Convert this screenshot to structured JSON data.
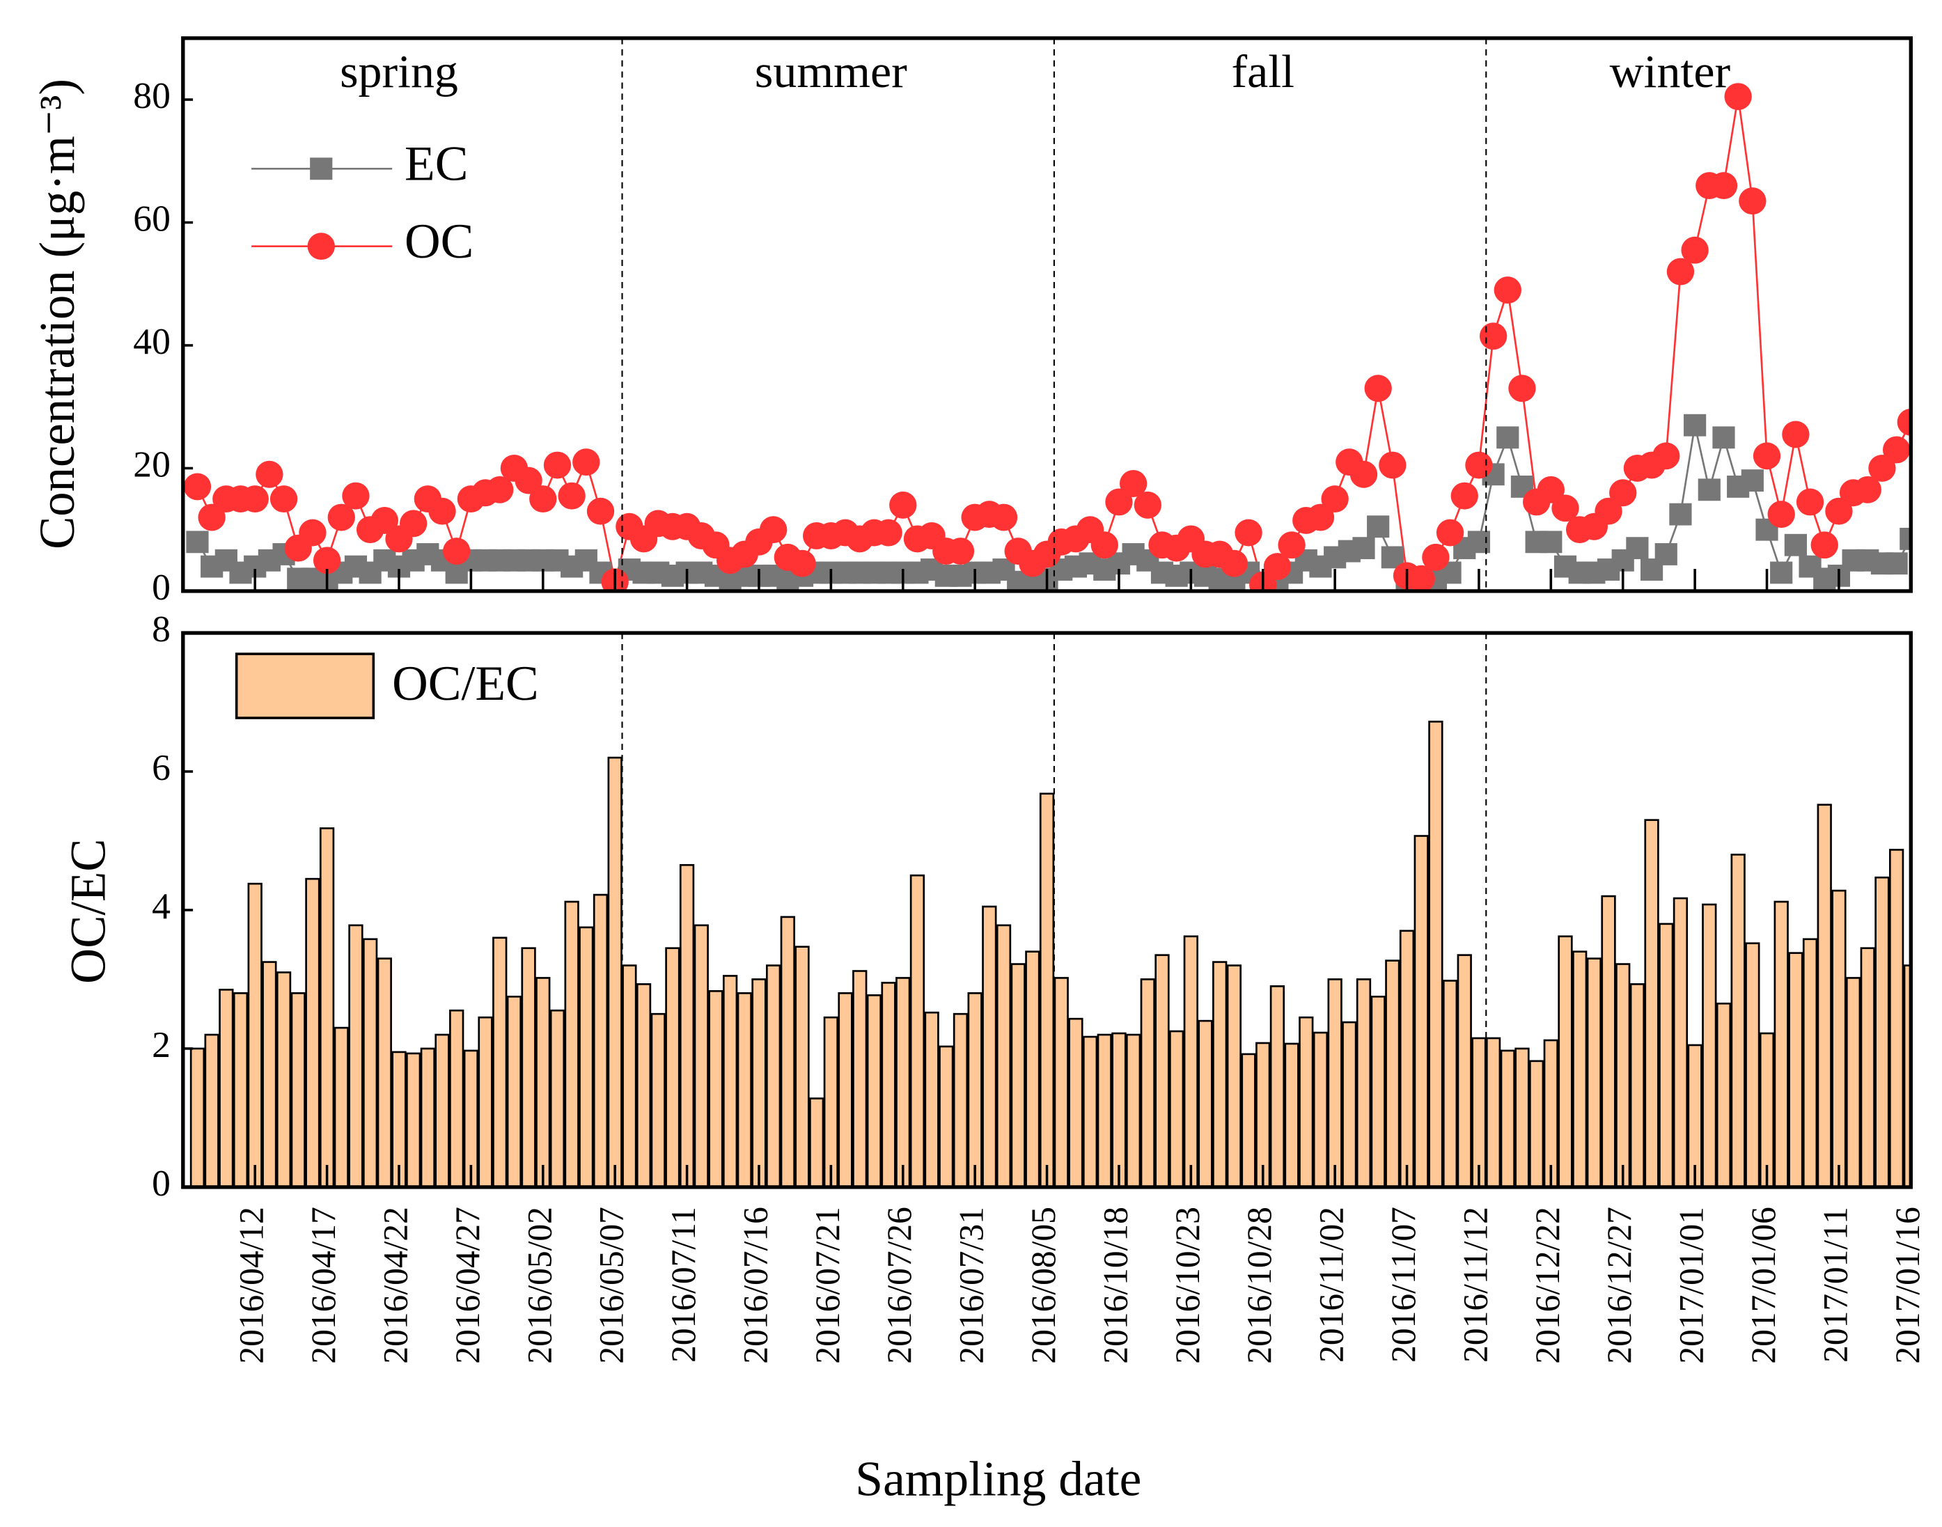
{
  "chart_data": [
    {
      "type": "line",
      "ylabel": "Concentration (μg·m⁻³)",
      "seasons": [
        "spring",
        "summer",
        "fall",
        "winter"
      ],
      "ylim": [
        0,
        90
      ],
      "yticks": [
        0,
        20,
        40,
        60,
        80
      ],
      "series": [
        {
          "name": "EC",
          "color": "#777777",
          "values": [
            8,
            4,
            5,
            3,
            4,
            5,
            6,
            2,
            2,
            2,
            3,
            4,
            3,
            5,
            4,
            5,
            6,
            5,
            3,
            5,
            5,
            5,
            5,
            5,
            5,
            5,
            4,
            5,
            3,
            1,
            3.5,
            3,
            3,
            2.5,
            3,
            3,
            2.5,
            2,
            2.5,
            2.5,
            2.5,
            2,
            2.5,
            3,
            3,
            3,
            3,
            3,
            3,
            3,
            3,
            3.5,
            2.5,
            2.5,
            3,
            3,
            3.5,
            1.5,
            1,
            2,
            3.5,
            4,
            4.5,
            3.5,
            4.5,
            6,
            5,
            3,
            2.5,
            3,
            2.5,
            2,
            2,
            3,
            0.5,
            2,
            3,
            5,
            4,
            5.5,
            6.5,
            7,
            10.5,
            5.5,
            0.5,
            0.5,
            2,
            3,
            7,
            8,
            19,
            25,
            17,
            8,
            8,
            4,
            3,
            3,
            3.5,
            5,
            7,
            3.5,
            6,
            12.5,
            27,
            16.5,
            25,
            17,
            18,
            10,
            3,
            7.5,
            4,
            2,
            2.5,
            5,
            5,
            4.5,
            4.5,
            8.5
          ]
        },
        {
          "name": "OC",
          "color": "#ff3333",
          "values": [
            17,
            12,
            15,
            15,
            15,
            19,
            15,
            7,
            9.5,
            5,
            12,
            15.5,
            10,
            11.5,
            8.5,
            11,
            15,
            13,
            6.5,
            15,
            16,
            16.5,
            20,
            18,
            15,
            20.5,
            15.5,
            21,
            13,
            1.5,
            10.5,
            8.5,
            11,
            10.5,
            10.5,
            9,
            7.5,
            5,
            6,
            8,
            10,
            5.5,
            4.5,
            9,
            9,
            9.5,
            8.5,
            9.5,
            9.5,
            14,
            8.5,
            9,
            6.5,
            6.5,
            12,
            12.5,
            12,
            6.5,
            4.5,
            6,
            8,
            8.5,
            10,
            7.5,
            14.5,
            17.5,
            14,
            7.5,
            7,
            8.5,
            6,
            6,
            4.5,
            9.5,
            1,
            4,
            7.5,
            11.5,
            12,
            15,
            21,
            19,
            33,
            20.5,
            2.5,
            2,
            5.5,
            9.5,
            15.5,
            20.5,
            41.5,
            49,
            33,
            14.5,
            16.5,
            13.5,
            10,
            10.5,
            13,
            16,
            20,
            20.5,
            22,
            52,
            55.5,
            66,
            66,
            80.5,
            63.5,
            22,
            12.5,
            25.5,
            14.5,
            7.5,
            13,
            16,
            16.5,
            20,
            23,
            27.5
          ]
        }
      ]
    },
    {
      "type": "bar",
      "ylabel": "OC/EC",
      "xlabel": "Sampling date",
      "ylim": [
        0,
        8
      ],
      "yticks": [
        0,
        2,
        4,
        6,
        8
      ],
      "categories": [
        null,
        null,
        null,
        null,
        "2016/04/12",
        null,
        null,
        null,
        null,
        "2016/04/17",
        null,
        null,
        null,
        null,
        "2016/04/22",
        null,
        null,
        null,
        null,
        "2016/04/27",
        null,
        null,
        null,
        null,
        "2016/05/02",
        null,
        null,
        null,
        null,
        "2016/05/07",
        null,
        null,
        null,
        null,
        "2016/07/11",
        null,
        null,
        null,
        null,
        "2016/07/16",
        null,
        null,
        null,
        null,
        "2016/07/21",
        null,
        null,
        null,
        null,
        "2016/07/26",
        null,
        null,
        null,
        null,
        "2016/07/31",
        null,
        null,
        null,
        null,
        "2016/08/05",
        null,
        null,
        null,
        null,
        "2016/10/18",
        null,
        null,
        null,
        null,
        "2016/10/23",
        null,
        null,
        null,
        null,
        "2016/10/28",
        null,
        null,
        null,
        null,
        "2016/11/02",
        null,
        null,
        null,
        null,
        "2016/11/07",
        null,
        null,
        null,
        null,
        "2016/11/12",
        null,
        null,
        null,
        null,
        "2016/12/22",
        null,
        null,
        null,
        null,
        "2016/12/27",
        null,
        null,
        null,
        null,
        "2017/01/01",
        null,
        null,
        null,
        null,
        "2017/01/06",
        null,
        null,
        null,
        null,
        "2017/01/11",
        null,
        null,
        null,
        null,
        "2017/01/16"
      ],
      "series": [
        {
          "name": "OC/EC",
          "color": "#ffc896",
          "values": [
            2.0,
            2.2,
            2.85,
            2.8,
            4.38,
            3.25,
            3.1,
            2.8,
            4.45,
            5.18,
            2.3,
            3.78,
            3.58,
            3.3,
            1.95,
            1.93,
            2.0,
            2.2,
            2.55,
            1.97,
            2.45,
            3.6,
            2.75,
            3.45,
            3.02,
            2.55,
            4.12,
            3.75,
            4.22,
            6.2,
            3.2,
            2.93,
            2.5,
            3.45,
            4.65,
            3.78,
            2.83,
            3.05,
            2.8,
            3.0,
            3.2,
            3.9,
            3.47,
            1.28,
            2.45,
            2.8,
            3.12,
            2.77,
            2.95,
            3.02,
            4.5,
            2.52,
            2.03,
            2.5,
            2.8,
            4.05,
            3.78,
            3.22,
            3.4,
            5.68,
            3.02,
            2.43,
            2.17,
            2.2,
            2.22,
            2.2,
            3.0,
            3.35,
            2.25,
            3.62,
            2.4,
            3.25,
            3.2,
            1.92,
            2.08,
            2.9,
            2.07,
            2.45,
            2.23,
            3.0,
            2.38,
            3.0,
            2.75,
            3.27,
            3.7,
            5.07,
            6.72,
            2.98,
            3.35,
            2.15,
            2.15,
            1.97,
            2.0,
            1.82,
            2.12,
            3.62,
            3.4,
            3.3,
            4.2,
            3.22,
            2.93,
            5.3,
            3.8,
            4.17,
            2.05,
            4.08,
            2.65,
            4.8,
            3.52,
            2.22,
            4.12,
            3.38,
            3.58,
            5.52,
            4.28,
            3.02,
            3.45,
            4.47,
            4.87,
            3.2
          ]
        }
      ]
    }
  ]
}
